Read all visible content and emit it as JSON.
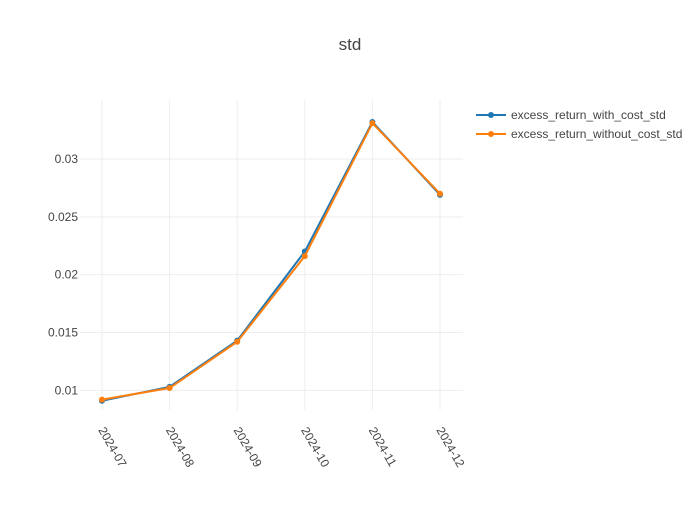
{
  "chart_data": {
    "type": "line",
    "title": "std",
    "xlabel": "",
    "ylabel": "",
    "categories": [
      "2024-07",
      "2024-08",
      "2024-09",
      "2024-10",
      "2024-11",
      "2024-12"
    ],
    "series": [
      {
        "name": "excess_return_with_cost_std",
        "color": "#1f77b4",
        "values": [
          0.0091,
          0.0103,
          0.0143,
          0.022,
          0.0332,
          0.0269
        ]
      },
      {
        "name": "excess_return_without_cost_std",
        "color": "#ff7f0e",
        "values": [
          0.0092,
          0.0102,
          0.0142,
          0.0216,
          0.0331,
          0.027
        ]
      }
    ],
    "ylim": [
      0.0083,
      0.0351
    ],
    "y_ticks": [
      0.01,
      0.015,
      0.02,
      0.025,
      0.03
    ],
    "y_tick_labels": [
      "0.01",
      "0.015",
      "0.02",
      "0.025",
      "0.03"
    ],
    "grid": true,
    "legend": "top-right",
    "markers": true
  }
}
